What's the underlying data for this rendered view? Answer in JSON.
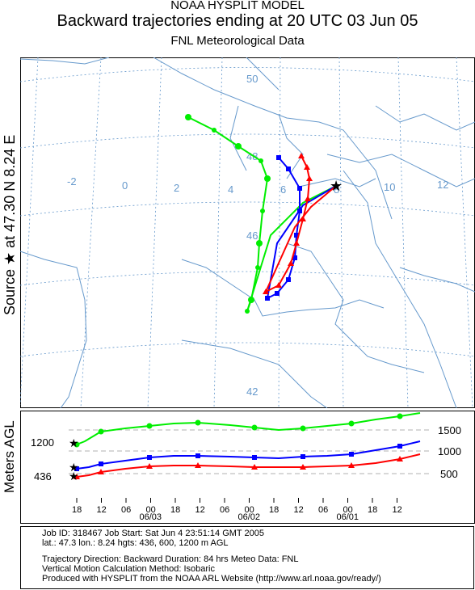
{
  "header": {
    "line1": "NOAA HYSPLIT MODEL",
    "line2": "Backward trajectories ending at 20 UTC 03 Jun 05",
    "line3": "FNL  Meteorological Data"
  },
  "side_label": "Source ★ at   47.30 N   8.24 E",
  "alt_axis_label": "Meters AGL",
  "map": {
    "lon_labels": [
      "-2",
      "0",
      "2",
      "4",
      "6",
      "8",
      "10",
      "12"
    ],
    "lat_labels": [
      "50",
      "48",
      "46",
      "42"
    ],
    "source": {
      "lat": 47.3,
      "lon": 8.24
    },
    "colors": {
      "red": "#ff0000",
      "blue": "#0000ff",
      "green": "#00ee00",
      "grid": "#6699cc",
      "coast": "#6699cc"
    }
  },
  "altitude": {
    "right_ticks": [
      "1500",
      "1000",
      "500"
    ],
    "left_labels": [
      "1200",
      "436"
    ],
    "time_ticks": [
      "18",
      "12",
      "06",
      "00",
      "18",
      "12",
      "06",
      "00",
      "18",
      "12",
      "06",
      "00",
      "18",
      "12"
    ],
    "dates": [
      "06/03",
      "06/02",
      "06/01"
    ]
  },
  "info": {
    "job_line": "Job ID: 318467        Job Start: Sat Jun  4 23:51:14 GMT 2005",
    "loc_line": "lat.: 47.3  lon.: 8.24  hgts: 436, 600, 1200 m AGL",
    "dir_line": "Trajectory Direction: Backward    Duration: 84 hrs    Meteo Data: FNL",
    "vert_line": "Vertical Motion Calculation Method: Isobaric",
    "prod_line": "Produced with HYSPLIT from the NOAA ARL Website (http://www.arl.noaa.gov/ready/)"
  }
}
